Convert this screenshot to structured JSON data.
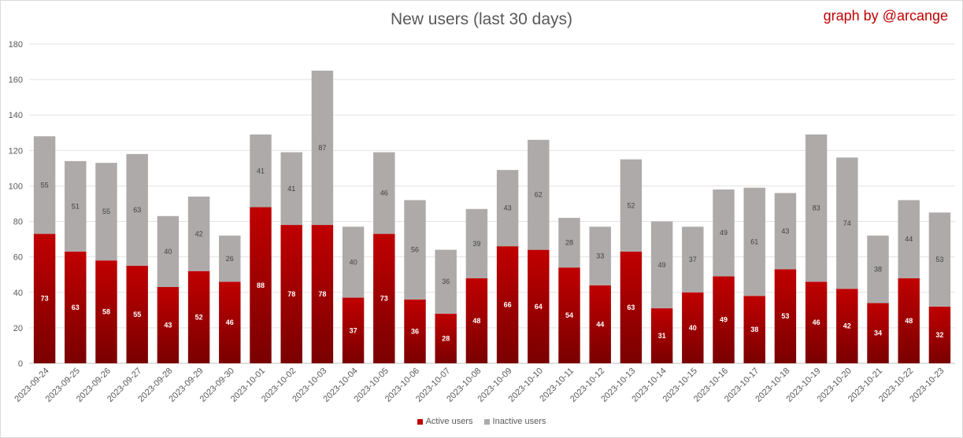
{
  "chart_data": {
    "type": "bar",
    "stacked": true,
    "title": "New users (last 30 days)",
    "credit": "graph by @arcange",
    "xlabel": "",
    "ylabel": "",
    "ylim": [
      0,
      180
    ],
    "yticks": [
      0,
      20,
      40,
      60,
      80,
      100,
      120,
      140,
      160,
      180
    ],
    "grid": true,
    "legend_position": "bottom",
    "categories": [
      "2023-09-24",
      "2023-09-25",
      "2023-09-26",
      "2023-09-27",
      "2023-09-28",
      "2023-09-29",
      "2023-09-30",
      "2023-10-01",
      "2023-10-02",
      "2023-10-03",
      "2023-10-04",
      "2023-10-05",
      "2023-10-06",
      "2023-10-07",
      "2023-10-08",
      "2023-10-09",
      "2023-10-10",
      "2023-10-11",
      "2023-10-12",
      "2023-10-13",
      "2023-10-14",
      "2023-10-15",
      "2023-10-16",
      "2023-10-17",
      "2023-10-18",
      "2023-10-19",
      "2023-10-20",
      "2023-10-21",
      "2023-10-22",
      "2023-10-23"
    ],
    "series": [
      {
        "name": "Active users",
        "color": "#c00000",
        "color_dark": "#7a0000",
        "values": [
          73,
          63,
          58,
          55,
          43,
          52,
          46,
          88,
          78,
          78,
          37,
          73,
          36,
          28,
          48,
          66,
          64,
          54,
          44,
          63,
          31,
          40,
          49,
          38,
          53,
          46,
          42,
          34,
          48,
          32
        ]
      },
      {
        "name": "Inactive users",
        "color": "#aeaaaa",
        "values": [
          55,
          51,
          55,
          63,
          40,
          42,
          26,
          41,
          41,
          87,
          40,
          46,
          56,
          36,
          39,
          43,
          62,
          28,
          33,
          52,
          49,
          37,
          49,
          61,
          43,
          83,
          74,
          38,
          44,
          53
        ]
      }
    ]
  }
}
